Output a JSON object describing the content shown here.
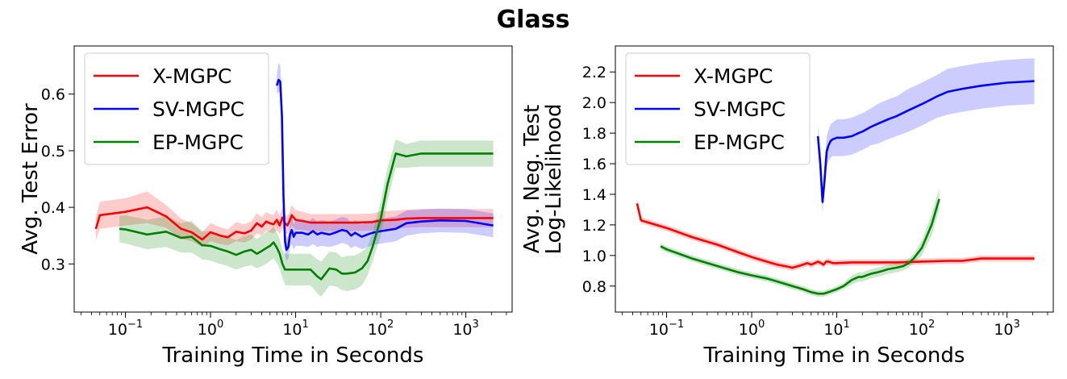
{
  "title": "Glass",
  "chart_data": [
    {
      "type": "line",
      "xscale": "log",
      "xlabel": "Training Time in Seconds",
      "ylabel": "Avg. Test Error",
      "xlim": [
        0.025,
        3500
      ],
      "ylim": [
        0.215,
        0.685
      ],
      "xticks": [
        {
          "value": 0.1,
          "base": "10",
          "exp": "−1"
        },
        {
          "value": 1,
          "base": "10",
          "exp": "0"
        },
        {
          "value": 10,
          "base": "10",
          "exp": "1"
        },
        {
          "value": 100,
          "base": "10",
          "exp": "2"
        },
        {
          "value": 1000,
          "base": "10",
          "exp": "3"
        }
      ],
      "yticks": [
        {
          "value": 0.3,
          "label": "0.3"
        },
        {
          "value": 0.4,
          "label": "0.4"
        },
        {
          "value": 0.5,
          "label": "0.5"
        },
        {
          "value": 0.6,
          "label": "0.6"
        }
      ],
      "legend": {
        "position": "upper-left"
      },
      "grid": false,
      "series": [
        {
          "name": "X-MGPC",
          "color": "#ff0000",
          "band_color": "#ff0000",
          "x": [
            0.045,
            0.05,
            0.1,
            0.18,
            0.3,
            0.45,
            0.6,
            0.8,
            1.0,
            1.3,
            1.6,
            2.0,
            2.5,
            3.0,
            3.5,
            4.0,
            4.5,
            5.0,
            5.5,
            6.0,
            6.5,
            7.0,
            7.5,
            8.0,
            8.5,
            9.0,
            10,
            12,
            15,
            20,
            30,
            50,
            80,
            100,
            150,
            200,
            300,
            500,
            1000,
            2100
          ],
          "y": [
            0.362,
            0.386,
            0.392,
            0.4,
            0.384,
            0.362,
            0.356,
            0.343,
            0.356,
            0.35,
            0.347,
            0.357,
            0.354,
            0.359,
            0.372,
            0.366,
            0.375,
            0.372,
            0.37,
            0.378,
            0.368,
            0.382,
            0.372,
            0.368,
            0.376,
            0.386,
            0.378,
            0.376,
            0.373,
            0.373,
            0.373,
            0.373,
            0.374,
            0.377,
            0.378,
            0.38,
            0.381,
            0.381,
            0.381,
            0.381
          ],
          "band_lo": [
            0.342,
            0.362,
            0.368,
            0.372,
            0.364,
            0.344,
            0.34,
            0.33,
            0.34,
            0.335,
            0.333,
            0.34,
            0.338,
            0.343,
            0.354,
            0.35,
            0.358,
            0.356,
            0.354,
            0.36,
            0.352,
            0.364,
            0.356,
            0.352,
            0.36,
            0.368,
            0.361,
            0.36,
            0.358,
            0.358,
            0.358,
            0.358,
            0.359,
            0.361,
            0.362,
            0.364,
            0.365,
            0.365,
            0.365,
            0.365
          ],
          "band_hi": [
            0.382,
            0.41,
            0.416,
            0.428,
            0.404,
            0.38,
            0.372,
            0.356,
            0.372,
            0.365,
            0.361,
            0.374,
            0.37,
            0.375,
            0.39,
            0.382,
            0.392,
            0.388,
            0.386,
            0.396,
            0.384,
            0.4,
            0.388,
            0.384,
            0.392,
            0.404,
            0.395,
            0.392,
            0.388,
            0.388,
            0.388,
            0.388,
            0.389,
            0.393,
            0.394,
            0.396,
            0.397,
            0.397,
            0.397,
            0.397
          ]
        },
        {
          "name": "SV-MGPC",
          "color": "#0000ff",
          "band_color": "#0000ff",
          "x": [
            6.0,
            6.3,
            6.6,
            6.9,
            7.2,
            7.5,
            7.8,
            8.2,
            8.6,
            9.0,
            9.5,
            10,
            12,
            14,
            16,
            18,
            20,
            25,
            30,
            35,
            40,
            45,
            50,
            60,
            70,
            80,
            100,
            150,
            200,
            300,
            500,
            1000,
            2100
          ],
          "y": [
            0.615,
            0.625,
            0.622,
            0.56,
            0.42,
            0.34,
            0.325,
            0.33,
            0.352,
            0.36,
            0.348,
            0.355,
            0.355,
            0.352,
            0.358,
            0.352,
            0.355,
            0.352,
            0.356,
            0.36,
            0.358,
            0.35,
            0.355,
            0.348,
            0.352,
            0.355,
            0.358,
            0.362,
            0.372,
            0.375,
            0.377,
            0.376,
            0.368
          ],
          "band_lo": [
            0.6,
            0.605,
            0.6,
            0.53,
            0.39,
            0.315,
            0.305,
            0.31,
            0.33,
            0.335,
            0.325,
            0.332,
            0.332,
            0.33,
            0.335,
            0.33,
            0.332,
            0.33,
            0.333,
            0.337,
            0.335,
            0.328,
            0.332,
            0.326,
            0.33,
            0.333,
            0.336,
            0.34,
            0.35,
            0.354,
            0.356,
            0.355,
            0.347
          ],
          "band_hi": [
            0.635,
            0.655,
            0.65,
            0.595,
            0.45,
            0.365,
            0.345,
            0.35,
            0.374,
            0.385,
            0.37,
            0.378,
            0.378,
            0.375,
            0.381,
            0.375,
            0.378,
            0.375,
            0.379,
            0.383,
            0.381,
            0.372,
            0.378,
            0.37,
            0.374,
            0.377,
            0.38,
            0.384,
            0.394,
            0.396,
            0.398,
            0.397,
            0.389
          ]
        },
        {
          "name": "EP-MGPC",
          "color": "#008000",
          "band_color": "#008000",
          "x": [
            0.085,
            0.1,
            0.18,
            0.3,
            0.45,
            0.6,
            0.8,
            1.0,
            1.3,
            1.6,
            2.0,
            2.5,
            3.0,
            3.5,
            4.0,
            4.5,
            5.0,
            5.5,
            6.0,
            6.5,
            7.0,
            7.5,
            8.0,
            9.0,
            10,
            12,
            15,
            18,
            20,
            25,
            30,
            35,
            40,
            50,
            60,
            70,
            80,
            100,
            120,
            150,
            200,
            300,
            500,
            1000,
            2100
          ],
          "y": [
            0.362,
            0.361,
            0.352,
            0.357,
            0.346,
            0.348,
            0.333,
            0.332,
            0.326,
            0.322,
            0.316,
            0.322,
            0.325,
            0.318,
            0.323,
            0.328,
            0.332,
            0.338,
            0.329,
            0.318,
            0.3,
            0.29,
            0.29,
            0.29,
            0.29,
            0.29,
            0.29,
            0.278,
            0.273,
            0.292,
            0.29,
            0.283,
            0.283,
            0.285,
            0.292,
            0.305,
            0.33,
            0.38,
            0.44,
            0.495,
            0.49,
            0.495,
            0.495,
            0.495,
            0.495
          ],
          "band_lo": [
            0.338,
            0.336,
            0.326,
            0.33,
            0.32,
            0.32,
            0.308,
            0.306,
            0.3,
            0.296,
            0.29,
            0.295,
            0.298,
            0.292,
            0.296,
            0.3,
            0.305,
            0.31,
            0.302,
            0.292,
            0.275,
            0.263,
            0.262,
            0.262,
            0.262,
            0.262,
            0.262,
            0.248,
            0.242,
            0.262,
            0.26,
            0.254,
            0.252,
            0.255,
            0.262,
            0.28,
            0.305,
            0.35,
            0.41,
            0.47,
            0.47,
            0.472,
            0.472,
            0.472,
            0.472
          ],
          "band_hi": [
            0.385,
            0.386,
            0.378,
            0.384,
            0.372,
            0.376,
            0.358,
            0.358,
            0.352,
            0.348,
            0.342,
            0.349,
            0.352,
            0.344,
            0.35,
            0.356,
            0.359,
            0.366,
            0.356,
            0.344,
            0.325,
            0.317,
            0.318,
            0.318,
            0.318,
            0.318,
            0.318,
            0.308,
            0.304,
            0.322,
            0.32,
            0.312,
            0.314,
            0.315,
            0.322,
            0.33,
            0.355,
            0.41,
            0.47,
            0.52,
            0.512,
            0.518,
            0.518,
            0.518,
            0.518
          ]
        }
      ]
    },
    {
      "type": "line",
      "xscale": "log",
      "xlabel": "Training Time in Seconds",
      "ylabel": "Avg. Neg. Test\nLog-Likelihood",
      "xlim": [
        0.025,
        3500
      ],
      "ylim": [
        0.63,
        2.37
      ],
      "xticks": [
        {
          "value": 0.1,
          "base": "10",
          "exp": "−1"
        },
        {
          "value": 1,
          "base": "10",
          "exp": "0"
        },
        {
          "value": 10,
          "base": "10",
          "exp": "1"
        },
        {
          "value": 100,
          "base": "10",
          "exp": "2"
        },
        {
          "value": 1000,
          "base": "10",
          "exp": "3"
        }
      ],
      "yticks": [
        {
          "value": 0.8,
          "label": "0.8"
        },
        {
          "value": 1.0,
          "label": "1.0"
        },
        {
          "value": 1.2,
          "label": "1.2"
        },
        {
          "value": 1.4,
          "label": "1.4"
        },
        {
          "value": 1.6,
          "label": "1.6"
        },
        {
          "value": 1.8,
          "label": "1.8"
        },
        {
          "value": 2.0,
          "label": "2.0"
        },
        {
          "value": 2.2,
          "label": "2.2"
        }
      ],
      "legend": {
        "position": "upper-left"
      },
      "grid": false,
      "series": [
        {
          "name": "X-MGPC",
          "color": "#ff0000",
          "band_color": "#ff0000",
          "x": [
            0.045,
            0.05,
            0.1,
            0.2,
            0.4,
            0.7,
            1.0,
            1.5,
            2.0,
            2.5,
            3.0,
            3.5,
            4.0,
            4.5,
            5.0,
            5.5,
            6.0,
            6.5,
            7.0,
            7.5,
            8.0,
            9.0,
            10,
            15,
            20,
            50,
            100,
            200,
            300,
            500,
            1000,
            2100
          ],
          "y": [
            1.34,
            1.23,
            1.18,
            1.12,
            1.07,
            1.02,
            0.99,
            0.96,
            0.94,
            0.93,
            0.92,
            0.93,
            0.94,
            0.95,
            0.94,
            0.95,
            0.96,
            0.95,
            0.94,
            0.96,
            0.96,
            0.95,
            0.95,
            0.955,
            0.955,
            0.955,
            0.96,
            0.965,
            0.965,
            0.98,
            0.98,
            0.98
          ],
          "band_lo": [
            1.31,
            1.21,
            1.16,
            1.1,
            1.05,
            1.0,
            0.97,
            0.94,
            0.92,
            0.91,
            0.9,
            0.91,
            0.92,
            0.93,
            0.92,
            0.93,
            0.94,
            0.93,
            0.92,
            0.94,
            0.94,
            0.93,
            0.93,
            0.935,
            0.935,
            0.935,
            0.94,
            0.945,
            0.945,
            0.96,
            0.96,
            0.96
          ],
          "band_hi": [
            1.37,
            1.25,
            1.2,
            1.14,
            1.09,
            1.04,
            1.01,
            0.98,
            0.96,
            0.95,
            0.94,
            0.95,
            0.96,
            0.97,
            0.96,
            0.97,
            0.98,
            0.97,
            0.96,
            0.98,
            0.98,
            0.97,
            0.97,
            0.975,
            0.975,
            0.975,
            0.98,
            0.985,
            0.985,
            1.0,
            1.0,
            1.0
          ]
        },
        {
          "name": "SV-MGPC",
          "color": "#0000ff",
          "band_color": "#0000ff",
          "x": [
            6.0,
            6.4,
            6.8,
            7.2,
            7.6,
            8.0,
            8.5,
            9.0,
            10,
            12,
            15,
            18,
            20,
            25,
            30,
            40,
            50,
            70,
            100,
            150,
            200,
            300,
            500,
            1000,
            2100
          ],
          "y": [
            1.78,
            1.6,
            1.35,
            1.5,
            1.68,
            1.72,
            1.75,
            1.76,
            1.77,
            1.77,
            1.78,
            1.8,
            1.81,
            1.84,
            1.86,
            1.89,
            1.91,
            1.95,
            1.99,
            2.04,
            2.07,
            2.09,
            2.11,
            2.13,
            2.14
          ],
          "band_lo": [
            1.7,
            1.52,
            1.28,
            1.42,
            1.58,
            1.62,
            1.64,
            1.65,
            1.65,
            1.65,
            1.66,
            1.68,
            1.69,
            1.72,
            1.73,
            1.76,
            1.78,
            1.81,
            1.85,
            1.9,
            1.92,
            1.94,
            1.96,
            1.98,
            1.99
          ],
          "band_hi": [
            1.86,
            1.68,
            1.42,
            1.58,
            1.78,
            1.82,
            1.86,
            1.87,
            1.89,
            1.89,
            1.9,
            1.92,
            1.93,
            1.96,
            1.99,
            2.02,
            2.04,
            2.09,
            2.13,
            2.18,
            2.22,
            2.24,
            2.26,
            2.28,
            2.29
          ]
        },
        {
          "name": "EP-MGPC",
          "color": "#008000",
          "band_color": "#008000",
          "x": [
            0.085,
            0.1,
            0.2,
            0.4,
            0.7,
            1.0,
            1.5,
            2.0,
            3.0,
            4.0,
            5.0,
            6.0,
            7.0,
            8.0,
            9.0,
            10,
            12,
            15,
            18,
            20,
            25,
            30,
            35,
            40,
            50,
            60,
            70,
            80,
            100,
            130,
            160
          ],
          "y": [
            1.06,
            1.04,
            0.98,
            0.93,
            0.89,
            0.87,
            0.85,
            0.83,
            0.8,
            0.78,
            0.76,
            0.75,
            0.75,
            0.76,
            0.77,
            0.78,
            0.8,
            0.84,
            0.86,
            0.86,
            0.88,
            0.89,
            0.9,
            0.91,
            0.92,
            0.93,
            0.95,
            0.98,
            1.05,
            1.2,
            1.37
          ],
          "band_lo": [
            1.04,
            1.02,
            0.96,
            0.91,
            0.87,
            0.85,
            0.83,
            0.81,
            0.78,
            0.76,
            0.74,
            0.73,
            0.73,
            0.74,
            0.75,
            0.76,
            0.78,
            0.81,
            0.83,
            0.83,
            0.85,
            0.86,
            0.87,
            0.88,
            0.89,
            0.9,
            0.92,
            0.95,
            1.0,
            1.13,
            1.3
          ],
          "band_hi": [
            1.08,
            1.06,
            1.0,
            0.95,
            0.91,
            0.89,
            0.87,
            0.85,
            0.82,
            0.8,
            0.78,
            0.77,
            0.77,
            0.78,
            0.79,
            0.8,
            0.82,
            0.87,
            0.89,
            0.89,
            0.91,
            0.92,
            0.93,
            0.94,
            0.95,
            0.96,
            0.98,
            1.01,
            1.1,
            1.27,
            1.44
          ]
        }
      ]
    }
  ]
}
